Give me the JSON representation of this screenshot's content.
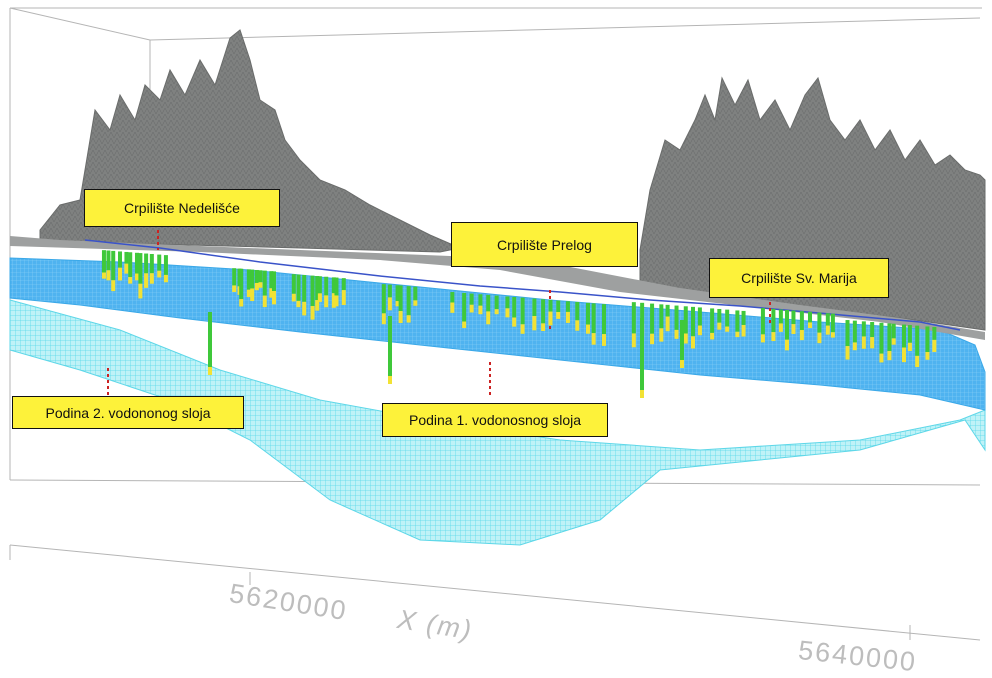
{
  "labels": {
    "nedelisce": "Crpilište Nedelišće",
    "prelog": "Crpilište Prelog",
    "sv_marija": "Crpilište Sv. Marija",
    "podina2": "Podina 2. vodononog sloja",
    "podina1": "Podina 1. vodonosnog sloja"
  },
  "axis": {
    "x_tick_1": "5620000",
    "x_tick_2": "5640000",
    "x_label": "X (m)"
  },
  "colors": {
    "terrain": "#7f8180",
    "aquifer_1": "#4fb3f0",
    "aquifer_2": "#7fe6f2",
    "river": "#3a53c9",
    "well_green": "#3fc83a",
    "well_yellow": "#f2e234",
    "marker_red": "#cc2222",
    "label_fill": "#fdf23a"
  }
}
